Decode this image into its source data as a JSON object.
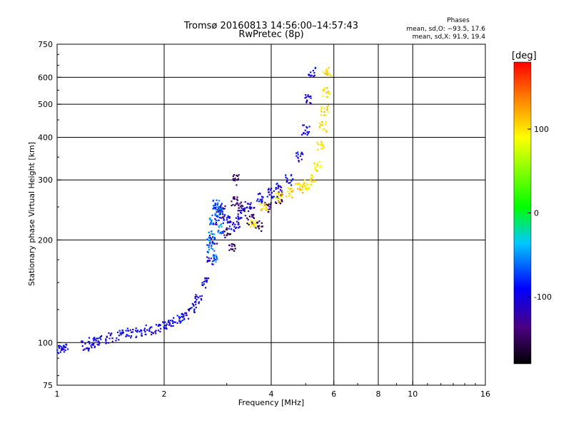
{
  "chart_data": {
    "type": "scatter",
    "title": "Tromsø 20160813 14:56:00–14:57:43",
    "subtitle": "RwPretec (8p)",
    "phase_box": {
      "heading": "Phases",
      "line1": "mean, sd,O: −93.5, 17.6",
      "line2": "mean, sd,X:  91.9, 19.4"
    },
    "xlabel": "Frequency [MHz]",
    "ylabel": "Stationary phase Virtual Height [km]",
    "xscale": "log",
    "yscale": "log",
    "xlim": [
      1,
      16
    ],
    "ylim": [
      75,
      750
    ],
    "xticks": [
      1,
      2,
      4,
      6,
      8,
      10,
      16
    ],
    "yticks": [
      75,
      100,
      200,
      300,
      400,
      500,
      600,
      750
    ],
    "grid": true,
    "colorbar": {
      "label": "[deg]",
      "range": [
        -180,
        180
      ],
      "ticks": [
        100,
        0,
        -100
      ]
    },
    "series": [
      {
        "mode": "O",
        "phase_deg": -100,
        "x": [
          1.02,
          1.05,
          1.2,
          1.25,
          1.3,
          1.4,
          1.5,
          1.6,
          1.7,
          1.8,
          1.9,
          2.0,
          2.1,
          2.2,
          2.3,
          2.4,
          2.5,
          2.6,
          2.7,
          2.75,
          2.8,
          2.85,
          2.9,
          3.0,
          3.1,
          3.2,
          3.3,
          3.5,
          3.7,
          4.0,
          4.2,
          4.5,
          4.8,
          5.0,
          5.1,
          5.2
        ],
        "y": [
          95,
          96,
          98,
          100,
          101,
          103,
          105,
          107,
          107,
          109,
          110,
          112,
          115,
          118,
          121,
          127,
          135,
          150,
          175,
          200,
          230,
          250,
          245,
          230,
          220,
          225,
          240,
          250,
          265,
          275,
          285,
          300,
          350,
          420,
          520,
          620
        ]
      },
      {
        "mode": "O",
        "phase_deg": -150,
        "x": [
          2.9,
          3.0,
          3.1,
          3.15,
          3.2,
          3.3,
          3.5,
          3.7,
          3.9,
          4.2
        ],
        "y": [
          240,
          210,
          190,
          260,
          300,
          250,
          230,
          220,
          250,
          265
        ]
      },
      {
        "mode": "O",
        "phase_deg": -60,
        "x": [
          2.7,
          2.75,
          2.8,
          2.85,
          2.9,
          2.7,
          2.8
        ],
        "y": [
          205,
          230,
          255,
          240,
          215,
          190,
          175
        ]
      },
      {
        "mode": "X",
        "phase_deg": 100,
        "x": [
          3.55,
          3.8,
          4.2,
          4.5,
          4.8,
          5.0,
          5.2,
          5.4,
          5.5,
          5.6,
          5.65,
          5.7,
          5.75
        ],
        "y": [
          225,
          250,
          265,
          275,
          285,
          290,
          300,
          330,
          380,
          430,
          480,
          540,
          620
        ]
      }
    ]
  }
}
